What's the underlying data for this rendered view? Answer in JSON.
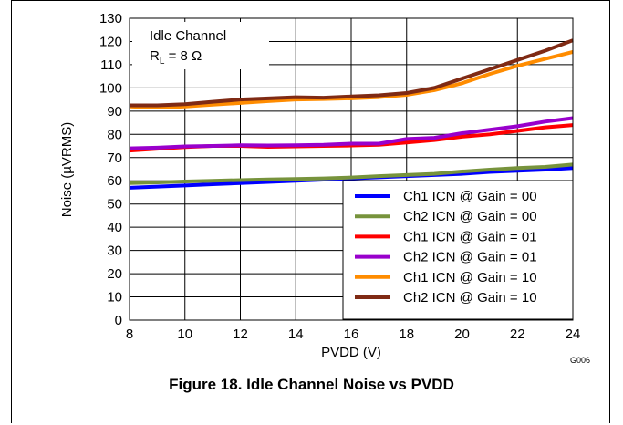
{
  "caption": "Figure 18. Idle Channel Noise vs PVDD",
  "figure_id": "G006",
  "chart_data": {
    "type": "line",
    "xlabel": "PVDD (V)",
    "ylabel": "Noise (µVRMS)",
    "xlim": [
      8,
      24
    ],
    "ylim": [
      0,
      130
    ],
    "xticks": [
      8,
      10,
      12,
      14,
      16,
      18,
      20,
      22,
      24
    ],
    "yticks": [
      0,
      10,
      20,
      30,
      40,
      50,
      60,
      70,
      80,
      90,
      100,
      110,
      120,
      130
    ],
    "grid": true,
    "legend_position": "bottom-right",
    "annotation": {
      "line1": "Idle Channel",
      "line2_main": "R",
      "line2_sub": "L",
      "line2_rest": " = 8 Ω"
    },
    "x": [
      8,
      9,
      10,
      11,
      12,
      13,
      14,
      15,
      16,
      17,
      18,
      19,
      20,
      21,
      22,
      23,
      24
    ],
    "series": [
      {
        "name": "Ch1 ICN @ Gain = 00",
        "color": "#0000ff",
        "values": [
          57,
          57.5,
          58,
          58.5,
          59,
          59.5,
          60,
          60.5,
          61,
          61.5,
          62,
          62.5,
          63,
          63.8,
          64.3,
          64.8,
          65.5
        ]
      },
      {
        "name": "Ch2 ICN @ Gain = 00",
        "color": "#77933c",
        "values": [
          59,
          59.3,
          59.7,
          60,
          60.3,
          60.6,
          60.8,
          61,
          61.4,
          62,
          62.5,
          63,
          64,
          64.8,
          65.5,
          66,
          67
        ]
      },
      {
        "name": "Ch1 ICN @ Gain = 01",
        "color": "#ff0000",
        "values": [
          73,
          73.8,
          74.5,
          75,
          75,
          74.6,
          74.8,
          75,
          75.2,
          75.5,
          76.5,
          77.5,
          79,
          80,
          81.5,
          83,
          84
        ]
      },
      {
        "name": "Ch2 ICN @ Gain = 01",
        "color": "#9900cc",
        "values": [
          74,
          74.3,
          74.8,
          75,
          75.3,
          75.2,
          75.3,
          75.5,
          76,
          76,
          78,
          78.5,
          80.5,
          82,
          83.5,
          85.5,
          87
        ]
      },
      {
        "name": "Ch1 ICN @ Gain = 10",
        "color": "#ff8c00",
        "values": [
          92,
          91.5,
          92,
          92.8,
          93.5,
          94.3,
          95,
          95.2,
          95.5,
          96,
          97,
          99,
          102,
          106,
          109.5,
          112.5,
          115.5
        ]
      },
      {
        "name": "Ch2 ICN @ Gain = 10",
        "color": "#7f2a14",
        "values": [
          92.5,
          92.5,
          93,
          94,
          95,
          95.5,
          96,
          95.8,
          96.3,
          96.8,
          97.8,
          100,
          104,
          108,
          112,
          116,
          120.5
        ]
      }
    ]
  }
}
